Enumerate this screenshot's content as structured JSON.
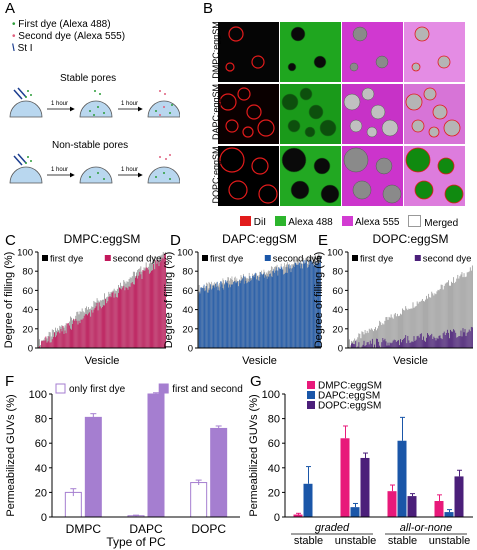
{
  "panels": {
    "A": {
      "letter": "A",
      "legend": [
        {
          "label": "First dye (Alexa 488)",
          "symbol": "•",
          "color": "#2e9e3b"
        },
        {
          "label": "Second dye (Alexa 555)",
          "symbol": "•",
          "color": "#e0607e"
        },
        {
          "label": "St I",
          "symbol": "\\",
          "color": "#1b3d8f"
        }
      ],
      "stable_title": "Stable pores",
      "nonstable_title": "Non-stable pores",
      "arrow_label": "1 hour"
    },
    "B": {
      "letter": "B",
      "rows": [
        "DMPC:eggSM",
        "DAPC:eggSM",
        "DOPC:eggSM"
      ],
      "legend": [
        {
          "label": "DiI",
          "color": "#e21b1b"
        },
        {
          "label": "Alexa 488",
          "color": "#2db52d"
        },
        {
          "label": "Alexa 555",
          "color": "#d23bd2"
        },
        {
          "label": "Merged",
          "color": "#ffffff"
        }
      ],
      "channel_colors": [
        "#000000",
        "#1fa61f",
        "#cc2ecc",
        "#e27be2"
      ]
    },
    "C": {
      "letter": "C"
    },
    "D": {
      "letter": "D"
    },
    "E": {
      "letter": "E"
    },
    "F": {
      "letter": "F"
    },
    "G": {
      "letter": "G"
    }
  },
  "chart_data": [
    {
      "id": "C",
      "type": "bar",
      "title": "DMPC:eggSM",
      "xlabel": "Vesicle",
      "ylabel": "Degree of filling (%)",
      "ylim": [
        0,
        100
      ],
      "yticks": [
        0,
        20,
        40,
        60,
        80,
        100
      ],
      "n_vesicles": 120,
      "series": [
        {
          "name": "first dye",
          "color": "#000000",
          "start": 5,
          "end": 100
        },
        {
          "name": "second dye",
          "color": "#c2185b",
          "start": 3,
          "end": 95
        }
      ]
    },
    {
      "id": "D",
      "type": "bar",
      "title": "DAPC:eggSM",
      "xlabel": "Vesicle",
      "ylabel": "Degree of filling (%)",
      "ylim": [
        0,
        100
      ],
      "yticks": [
        0,
        20,
        40,
        60,
        80,
        100
      ],
      "n_vesicles": 150,
      "series": [
        {
          "name": "first dye",
          "color": "#000000",
          "start": 62,
          "end": 95
        },
        {
          "name": "second dye",
          "color": "#1a56a8",
          "start": 60,
          "end": 92
        }
      ]
    },
    {
      "id": "E",
      "type": "bar",
      "title": "DOPC:eggSM",
      "xlabel": "Vesicle",
      "ylabel": "Degree of filling (%)",
      "ylim": [
        0,
        100
      ],
      "yticks": [
        0,
        20,
        40,
        60,
        80,
        100
      ],
      "n_vesicles": 120,
      "series": [
        {
          "name": "first dye",
          "color": "#000000",
          "start": 5,
          "end": 82
        },
        {
          "name": "second dye",
          "color": "#4b1f7a",
          "start": 2,
          "end": 18
        }
      ]
    },
    {
      "id": "F",
      "type": "bar",
      "xlabel": "Type of PC",
      "ylabel": "Permeabilized GUVs (%)",
      "ylim": [
        0,
        100
      ],
      "yticks": [
        0,
        20,
        40,
        60,
        80,
        100
      ],
      "categories": [
        "DMPC",
        "DAPC",
        "DOPC"
      ],
      "series": [
        {
          "name": "only first dye",
          "color": "#ffffff",
          "stroke": "#a57ed0",
          "values": [
            20,
            1,
            28
          ],
          "errors": [
            3,
            0.5,
            2
          ]
        },
        {
          "name": "first and second dyes",
          "color": "#a57ed0",
          "stroke": "#a57ed0",
          "values": [
            81,
            100,
            72
          ],
          "errors": [
            3,
            1,
            2
          ]
        }
      ]
    },
    {
      "id": "G",
      "type": "bar",
      "ylabel": "Permeabilized GUVs (%)",
      "ylim": [
        0,
        100
      ],
      "yticks": [
        0,
        20,
        40,
        60,
        80,
        100
      ],
      "groups": [
        {
          "label": "graded",
          "categories": [
            "stable",
            "unstable"
          ]
        },
        {
          "label": "all-or-none",
          "categories": [
            "stable",
            "unstable"
          ]
        }
      ],
      "categories": [
        "stable",
        "unstable",
        "stable",
        "unstable"
      ],
      "series": [
        {
          "name": "DMPC:eggSM",
          "color": "#e8197a",
          "values": [
            2,
            64,
            21,
            13
          ],
          "errors": [
            1,
            10,
            5,
            5
          ]
        },
        {
          "name": "DAPC:eggSM",
          "color": "#1a56a8",
          "values": [
            27,
            8,
            62,
            4
          ],
          "errors": [
            14,
            3,
            19,
            2
          ]
        },
        {
          "name": "DOPC:eggSM",
          "color": "#4b1f7a",
          "values": [
            0,
            48,
            17,
            33
          ],
          "errors": [
            0,
            4,
            2,
            5
          ]
        }
      ]
    }
  ]
}
